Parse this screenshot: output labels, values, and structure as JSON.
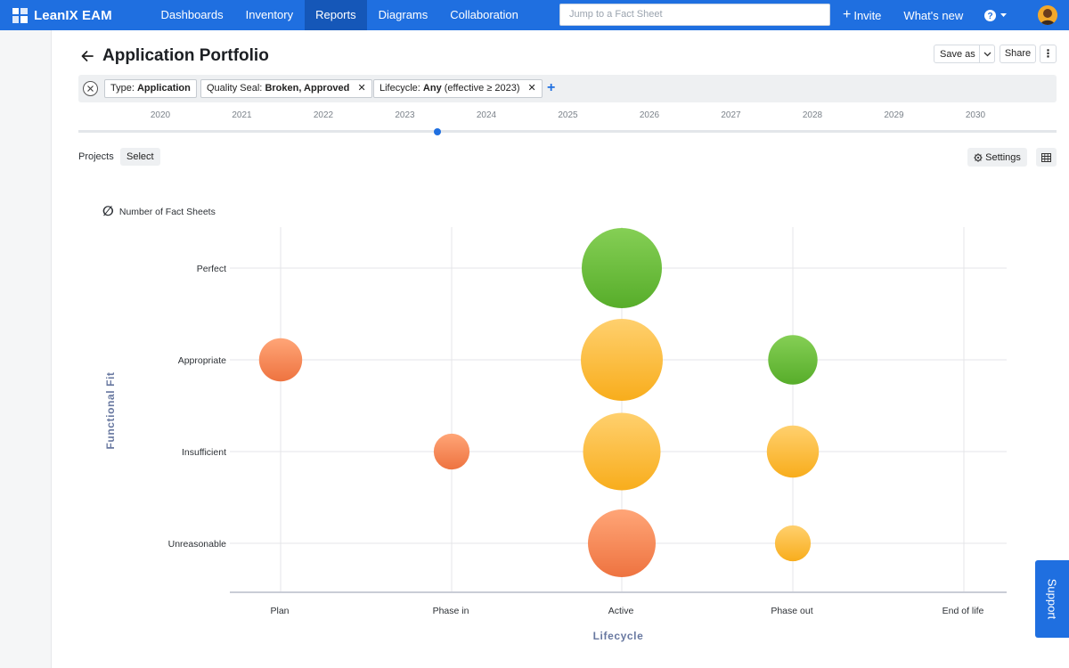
{
  "app": {
    "brand": "LeanIX EAM",
    "colors": {
      "primary": "#1f6fe0",
      "primary_dark": "#1557b8"
    }
  },
  "nav": {
    "items": [
      {
        "label": "Dashboards"
      },
      {
        "label": "Inventory"
      },
      {
        "label": "Reports",
        "active": true
      },
      {
        "label": "Diagrams"
      },
      {
        "label": "Collaboration"
      }
    ],
    "search_placeholder": "Jump to a Fact Sheet",
    "invite_label": "Invite",
    "whats_new_label": "What's new",
    "help_icon": "question-circle-icon"
  },
  "page": {
    "title": "Application Portfolio",
    "save_as_label": "Save as",
    "share_label": "Share",
    "more_label": "⋮"
  },
  "filters": [
    {
      "prefix": "Type:",
      "value": "Application",
      "removable": false
    },
    {
      "prefix": "Quality Seal:",
      "value": "Broken, Approved",
      "removable": true
    },
    {
      "prefix": "Lifecycle:",
      "value": "Any",
      "suffix": "(effective ≥ 2023)",
      "removable": true
    }
  ],
  "timeline": {
    "years": [
      "2020",
      "2021",
      "2022",
      "2023",
      "2024",
      "2025",
      "2026",
      "2027",
      "2028",
      "2029",
      "2030"
    ],
    "selected": "2023 (mid-year)"
  },
  "projects": {
    "label": "Projects",
    "select_label": "Select",
    "settings_label": "Settings"
  },
  "legend": {
    "symbol": "∅",
    "label": "Number of Fact Sheets"
  },
  "chart_data": {
    "type": "scatter",
    "subtype": "bubble",
    "xlabel": "Lifecycle",
    "ylabel": "Functional Fit",
    "x_categories": [
      "Plan",
      "Phase in",
      "Active",
      "Phase out",
      "End of life"
    ],
    "y_categories": [
      "Perfect",
      "Appropriate",
      "Insufficient",
      "Unreasonable"
    ],
    "grid": true,
    "colors": {
      "green": "#6bbf3b",
      "yellow": "#fbbb30",
      "orange": "#f68a52"
    },
    "points": [
      {
        "x": "Active",
        "y": "Perfect",
        "size": 45,
        "color": "green"
      },
      {
        "x": "Plan",
        "y": "Appropriate",
        "size": 13,
        "color": "orange"
      },
      {
        "x": "Active",
        "y": "Appropriate",
        "size": 47,
        "color": "yellow"
      },
      {
        "x": "Phase out",
        "y": "Appropriate",
        "size": 17,
        "color": "green"
      },
      {
        "x": "Phase in",
        "y": "Insufficient",
        "size": 9,
        "color": "orange"
      },
      {
        "x": "Active",
        "y": "Insufficient",
        "size": 42,
        "color": "yellow"
      },
      {
        "x": "Phase out",
        "y": "Insufficient",
        "size": 19,
        "color": "yellow"
      },
      {
        "x": "Active",
        "y": "Unreasonable",
        "size": 32,
        "color": "orange"
      },
      {
        "x": "Phase out",
        "y": "Unreasonable",
        "size": 9,
        "color": "yellow"
      }
    ]
  },
  "support": {
    "label": "Support"
  }
}
